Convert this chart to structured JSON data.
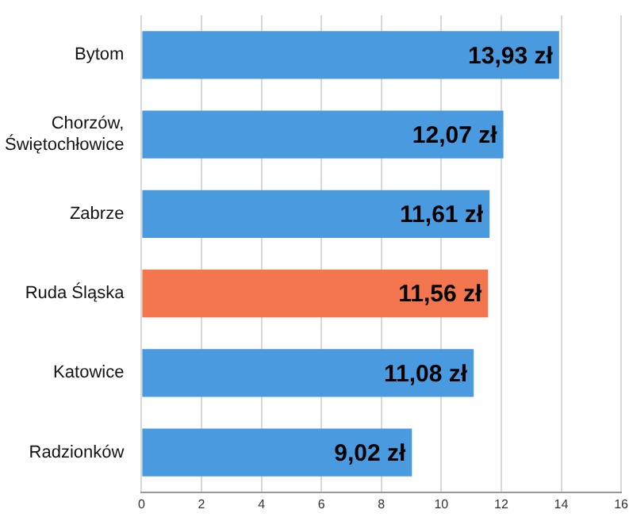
{
  "chart_data": {
    "type": "bar",
    "orientation": "horizontal",
    "categories": [
      "Bytom",
      "Chorzów, Świętochłowice",
      "Zabrze",
      "Ruda Śląska",
      "Katowice",
      "Radzionków"
    ],
    "values": [
      13.93,
      12.07,
      11.61,
      11.56,
      11.08,
      9.02
    ],
    "colors": [
      "#4a9ae0",
      "#4a9ae0",
      "#4a9ae0",
      "#f4764e",
      "#4a9ae0",
      "#4a9ae0"
    ],
    "value_labels": [
      "13,93 zł",
      "12,07 zł",
      "11,61 zł",
      "11,56 zł",
      "11,08 zł",
      "9,02 zł"
    ],
    "xlim": [
      0,
      16
    ],
    "xticks": [
      0,
      2,
      4,
      6,
      8,
      10,
      12,
      14,
      16
    ],
    "grid": "x",
    "legend": false
  }
}
